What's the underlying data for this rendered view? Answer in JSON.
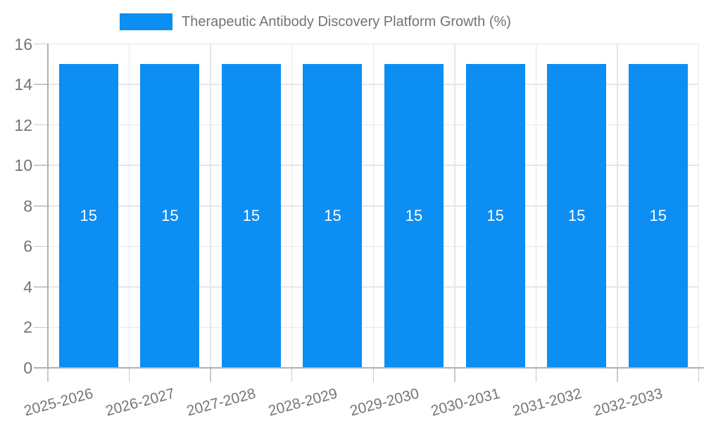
{
  "chart_data": {
    "type": "bar",
    "title": "Therapeutic Antibody Discovery Platform Growth (%)",
    "categories": [
      "2025-2026",
      "2026-2027",
      "2027-2028",
      "2028-2029",
      "2029-2030",
      "2030-2031",
      "2031-2032",
      "2032-2033"
    ],
    "values": [
      15,
      15,
      15,
      15,
      15,
      15,
      15,
      15
    ],
    "bar_value_labels": [
      "15",
      "15",
      "15",
      "15",
      "15",
      "15",
      "15",
      "15"
    ],
    "xlabel": "",
    "ylabel": "",
    "ylim": [
      0,
      16
    ],
    "yticks": [
      0,
      2,
      4,
      6,
      8,
      10,
      12,
      14,
      16
    ],
    "grid": true,
    "legend_position": "top-center",
    "x_tick_rotation_deg": -15,
    "colors": {
      "bar": "#0d8ef2",
      "bar_value_label": "#ffffff",
      "axis_text": "#757575",
      "legend_text": "#737373",
      "gridline": "#e7e7e7",
      "tick": "#c9c9c9",
      "axis_line": "#b0b0b0"
    }
  }
}
